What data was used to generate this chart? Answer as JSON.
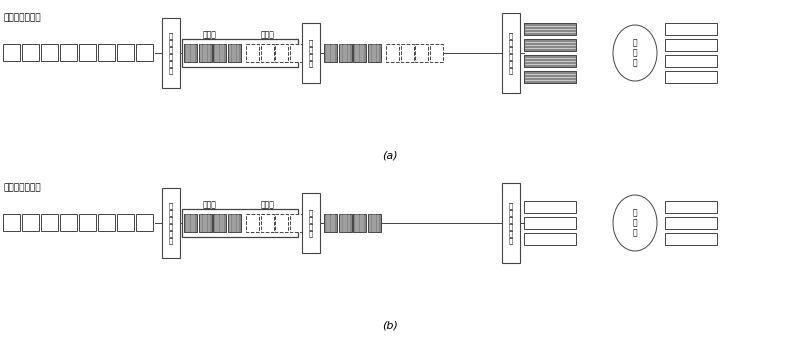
{
  "fig_width": 8.0,
  "fig_height": 3.42,
  "bg_color": "#ffffff",
  "label_a": "(a)",
  "label_b": "(b)",
  "top_mode_label": "正常工作模式：",
  "bot_mode_label": "压缩恢复模式：",
  "top_module1": "等\n级\n标\n记\n模\n块",
  "bot_module1": "等\n级\n标\n记\n模\n块",
  "top_module2": "过\n滤\n模\n块",
  "bot_module2": "过\n滤\n模\n块",
  "top_module3": "电\n光\n映\n射\n模\n块",
  "bot_module3": "电\n光\n映\n射\n模\n块",
  "top_switch": "光\n交\n叉",
  "bot_switch": "光\n交\n叉",
  "top_high_label": "高等级",
  "top_low_label": "低等级",
  "bot_high_label": "高等级",
  "bot_low_label": "低等级",
  "edge_color": "#444444",
  "dark_fill": "#888888",
  "light_fill": "#ffffff"
}
